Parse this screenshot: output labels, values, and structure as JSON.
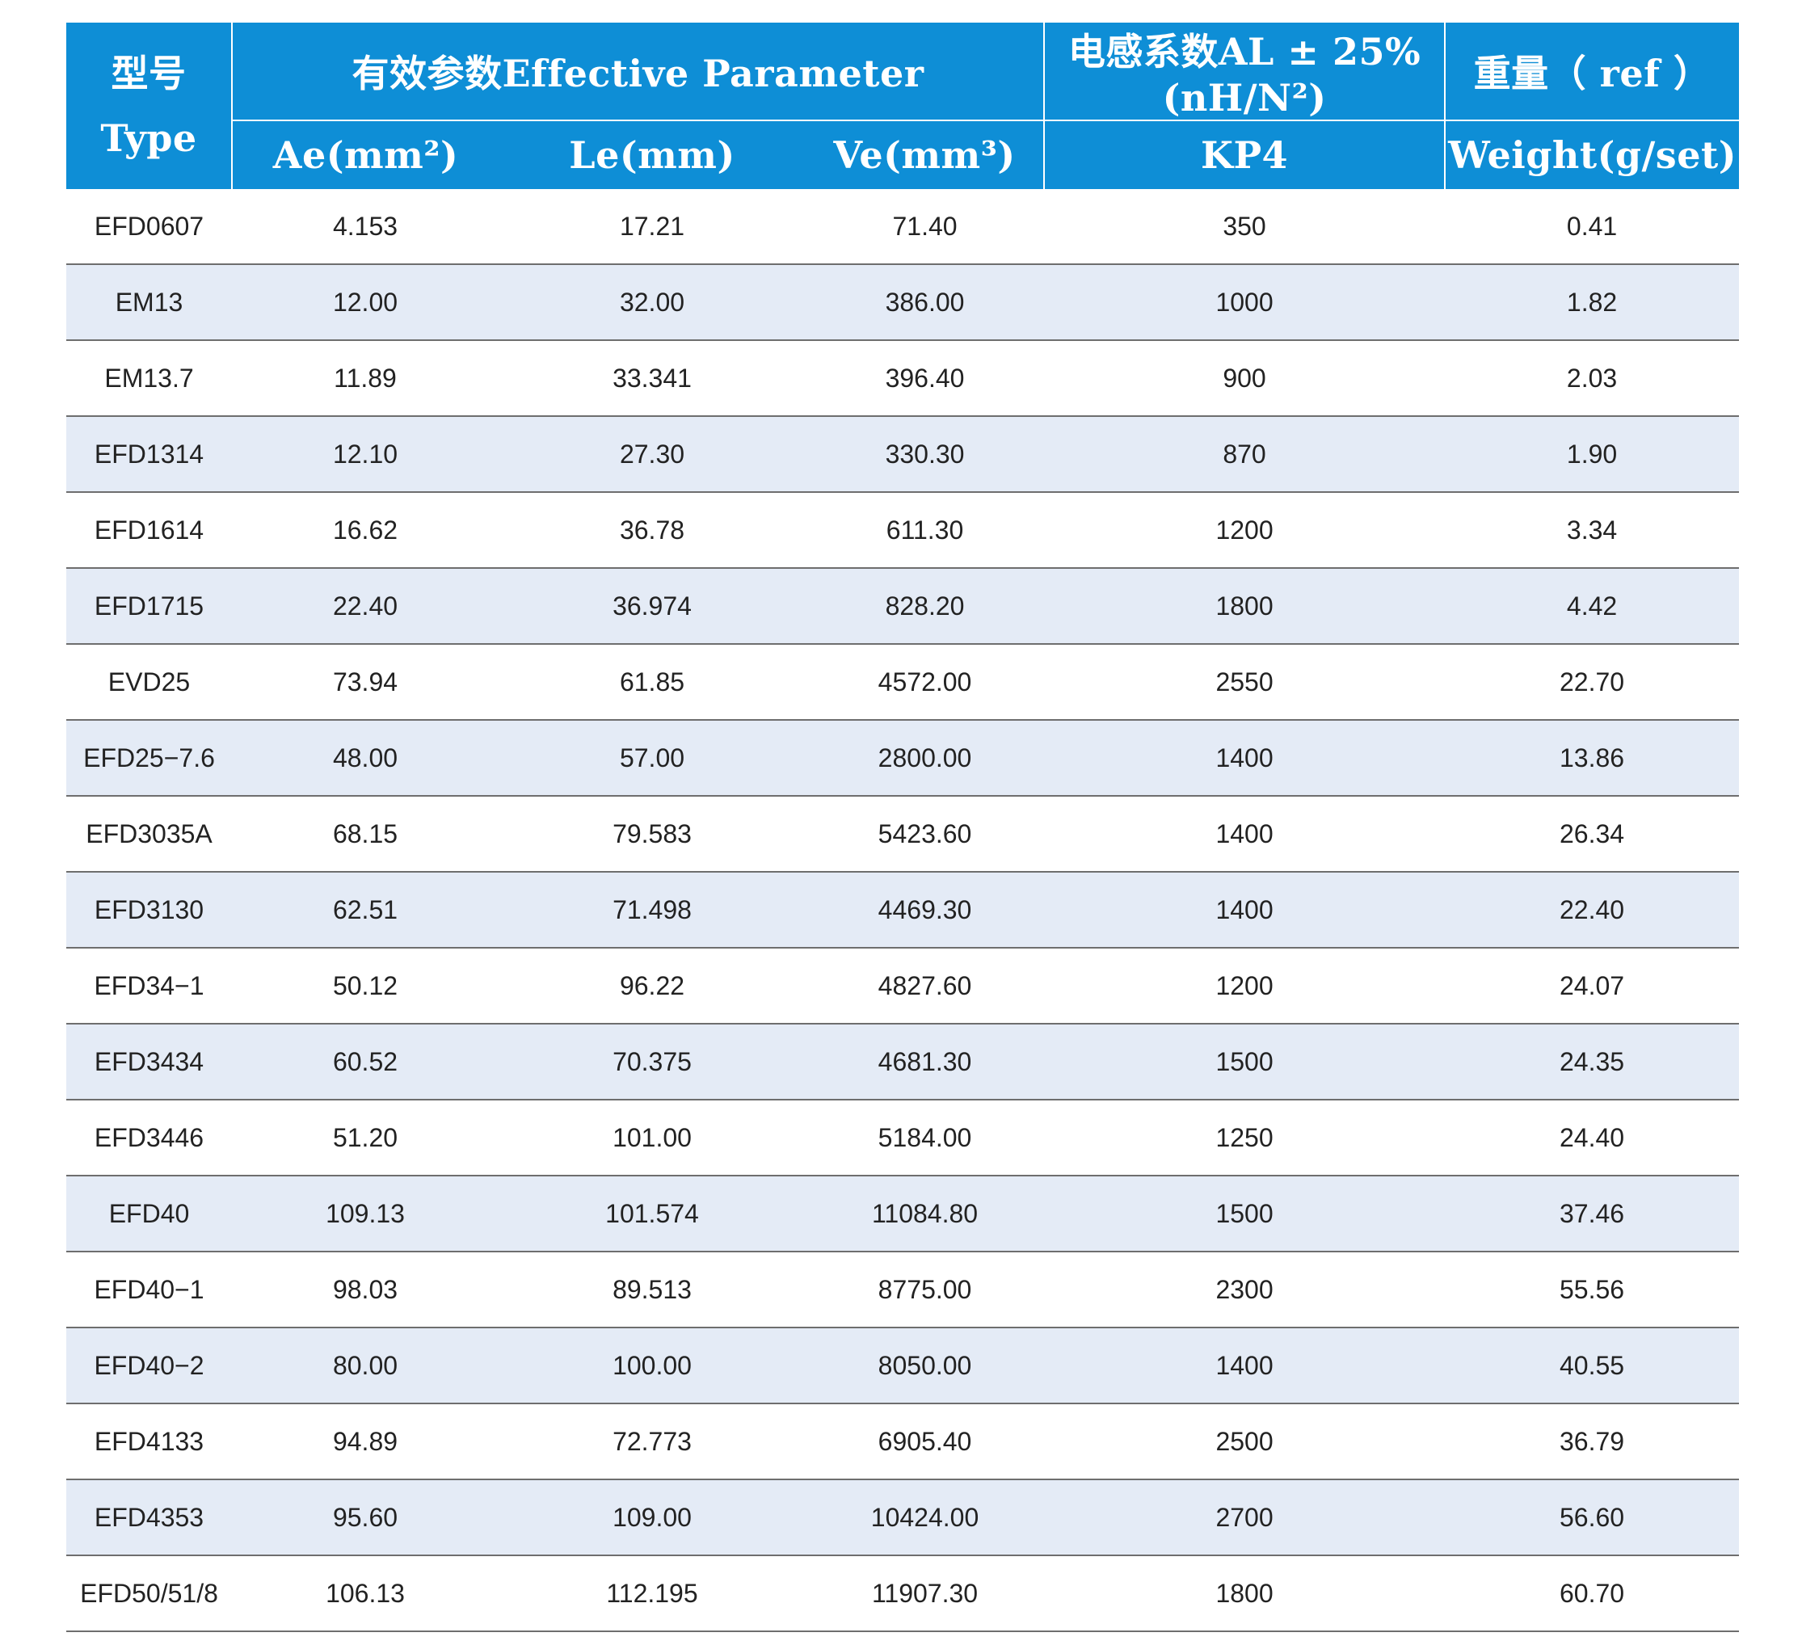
{
  "header": {
    "type_zh": "型号",
    "type_en": "Type",
    "effective_group": "有效参数Effective Parameter",
    "ae": "Ae(mm²)",
    "le": "Le(mm)",
    "ve": "Ve(mm³)",
    "al_group": "电感系数AL ± 25%(nH/N²)",
    "kp4": "KP4",
    "weight_zh": "重量（ ref ）",
    "weight_en": "Weight(g/set)"
  },
  "colors": {
    "header_bg": "#0e8ed6",
    "stripe_bg": "#e4ebf6"
  },
  "rows": [
    {
      "type": "EFD0607",
      "ae": "4.153",
      "le": "17.21",
      "ve": "71.40",
      "kp4": "350",
      "weight": "0.41"
    },
    {
      "type": "EM13",
      "ae": "12.00",
      "le": "32.00",
      "ve": "386.00",
      "kp4": "1000",
      "weight": "1.82"
    },
    {
      "type": "EM13.7",
      "ae": "11.89",
      "le": "33.341",
      "ve": "396.40",
      "kp4": "900",
      "weight": "2.03"
    },
    {
      "type": "EFD1314",
      "ae": "12.10",
      "le": "27.30",
      "ve": "330.30",
      "kp4": "870",
      "weight": "1.90"
    },
    {
      "type": "EFD1614",
      "ae": "16.62",
      "le": "36.78",
      "ve": "611.30",
      "kp4": "1200",
      "weight": "3.34"
    },
    {
      "type": "EFD1715",
      "ae": "22.40",
      "le": "36.974",
      "ve": "828.20",
      "kp4": "1800",
      "weight": "4.42"
    },
    {
      "type": "EVD25",
      "ae": "73.94",
      "le": "61.85",
      "ve": "4572.00",
      "kp4": "2550",
      "weight": "22.70"
    },
    {
      "type": "EFD25−7.6",
      "ae": "48.00",
      "le": "57.00",
      "ve": "2800.00",
      "kp4": "1400",
      "weight": "13.86"
    },
    {
      "type": "EFD3035A",
      "ae": "68.15",
      "le": "79.583",
      "ve": "5423.60",
      "kp4": "1400",
      "weight": "26.34"
    },
    {
      "type": "EFD3130",
      "ae": "62.51",
      "le": "71.498",
      "ve": "4469.30",
      "kp4": "1400",
      "weight": "22.40"
    },
    {
      "type": "EFD34−1",
      "ae": "50.12",
      "le": "96.22",
      "ve": "4827.60",
      "kp4": "1200",
      "weight": "24.07"
    },
    {
      "type": "EFD3434",
      "ae": "60.52",
      "le": "70.375",
      "ve": "4681.30",
      "kp4": "1500",
      "weight": "24.35"
    },
    {
      "type": "EFD3446",
      "ae": "51.20",
      "le": "101.00",
      "ve": "5184.00",
      "kp4": "1250",
      "weight": "24.40"
    },
    {
      "type": "EFD40",
      "ae": "109.13",
      "le": "101.574",
      "ve": "11084.80",
      "kp4": "1500",
      "weight": "37.46"
    },
    {
      "type": "EFD40−1",
      "ae": "98.03",
      "le": "89.513",
      "ve": "8775.00",
      "kp4": "2300",
      "weight": "55.56"
    },
    {
      "type": "EFD40−2",
      "ae": "80.00",
      "le": "100.00",
      "ve": "8050.00",
      "kp4": "1400",
      "weight": "40.55"
    },
    {
      "type": "EFD4133",
      "ae": "94.89",
      "le": "72.773",
      "ve": "6905.40",
      "kp4": "2500",
      "weight": "36.79"
    },
    {
      "type": "EFD4353",
      "ae": "95.60",
      "le": "109.00",
      "ve": "10424.00",
      "kp4": "2700",
      "weight": "56.60"
    },
    {
      "type": "EFD50/51/8",
      "ae": "106.13",
      "le": "112.195",
      "ve": "11907.30",
      "kp4": "1800",
      "weight": "60.70"
    }
  ]
}
